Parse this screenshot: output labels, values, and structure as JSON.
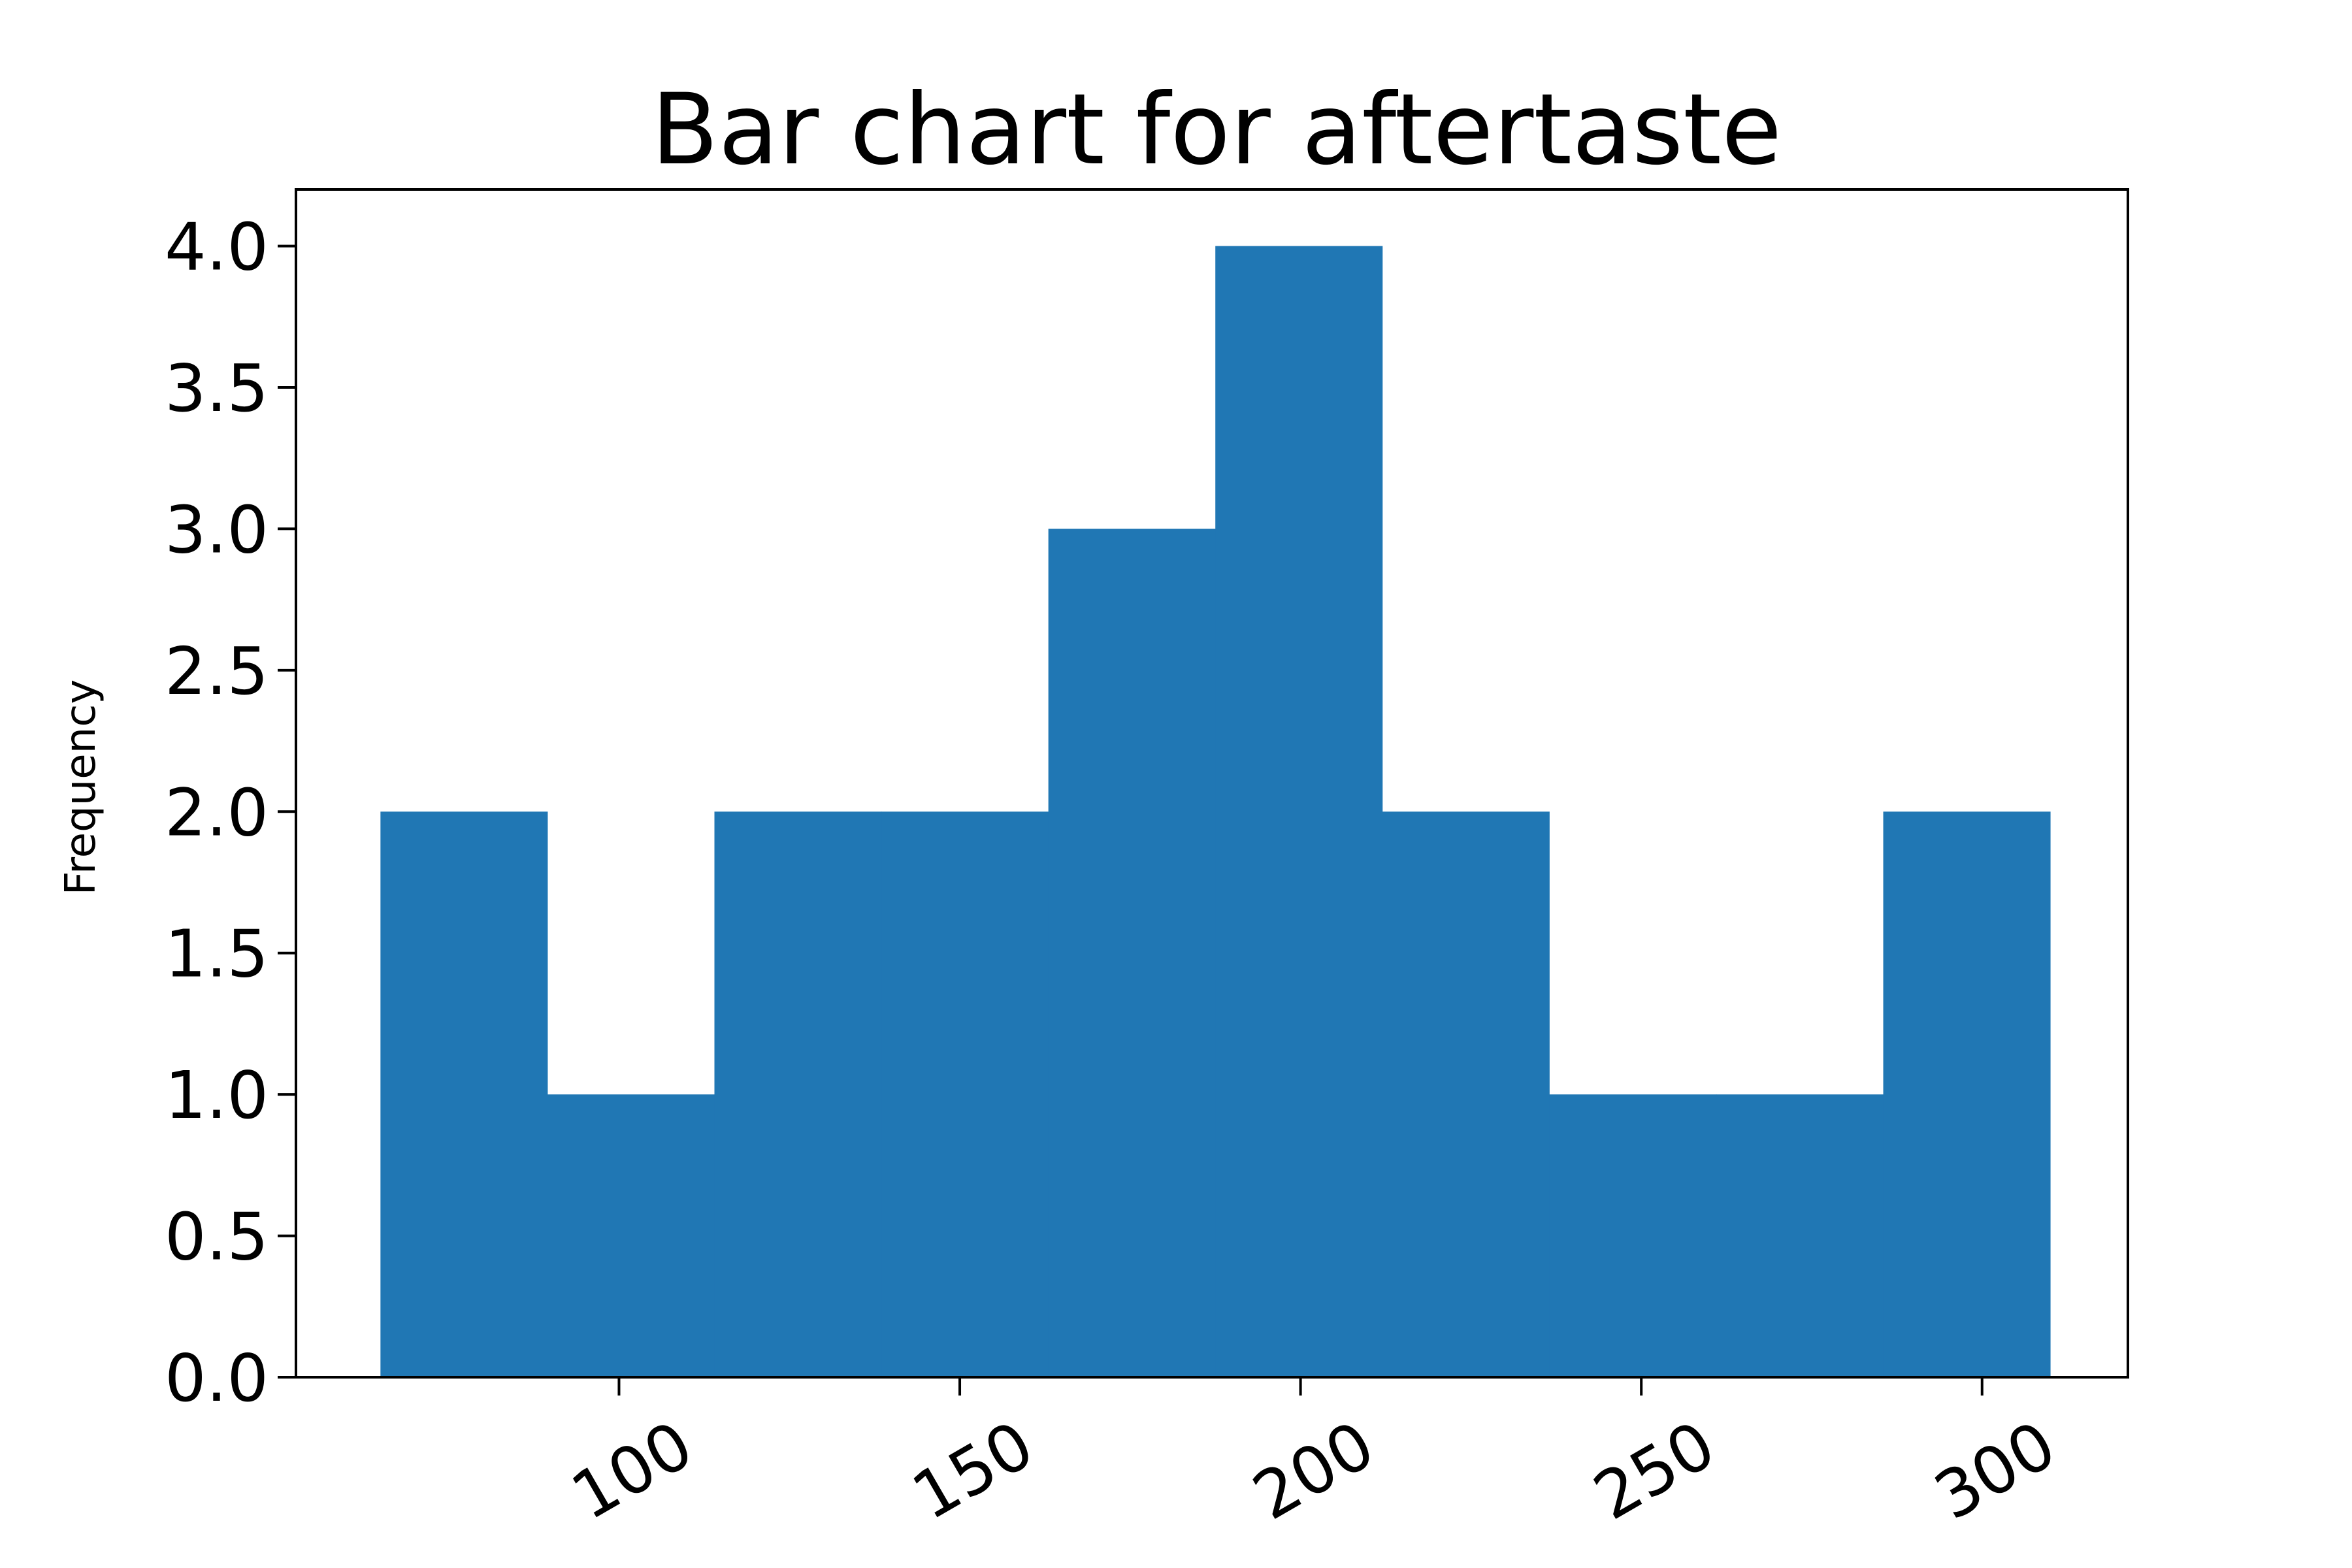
{
  "chart_data": {
    "type": "bar",
    "title": "Bar chart for aftertaste",
    "xlabel": "",
    "ylabel": "Frequency",
    "bar_color": "#2077b4",
    "xlim": [
      52.6,
      321.4
    ],
    "ylim": [
      0,
      4.2
    ],
    "x_ticks": [
      100,
      150,
      200,
      250,
      300
    ],
    "y_ticks": [
      0.0,
      0.5,
      1.0,
      1.5,
      2.0,
      2.5,
      3.0,
      3.5,
      4.0
    ],
    "y_tick_labels": [
      "0.0",
      "0.5",
      "1.0",
      "1.5",
      "2.0",
      "2.5",
      "3.0",
      "3.5",
      "4.0"
    ],
    "bins": [
      {
        "x0": 65.0,
        "x1": 89.5,
        "value": 2
      },
      {
        "x0": 89.5,
        "x1": 114.0,
        "value": 1
      },
      {
        "x0": 114.0,
        "x1": 138.5,
        "value": 2
      },
      {
        "x0": 138.5,
        "x1": 163.0,
        "value": 2
      },
      {
        "x0": 163.0,
        "x1": 187.5,
        "value": 3
      },
      {
        "x0": 187.5,
        "x1": 212.0,
        "value": 4
      },
      {
        "x0": 212.0,
        "x1": 236.5,
        "value": 2
      },
      {
        "x0": 236.5,
        "x1": 261.0,
        "value": 1
      },
      {
        "x0": 261.0,
        "x1": 285.5,
        "value": 1
      },
      {
        "x0": 285.5,
        "x1": 310.0,
        "value": 2
      }
    ],
    "grid": false,
    "legend": "none"
  }
}
